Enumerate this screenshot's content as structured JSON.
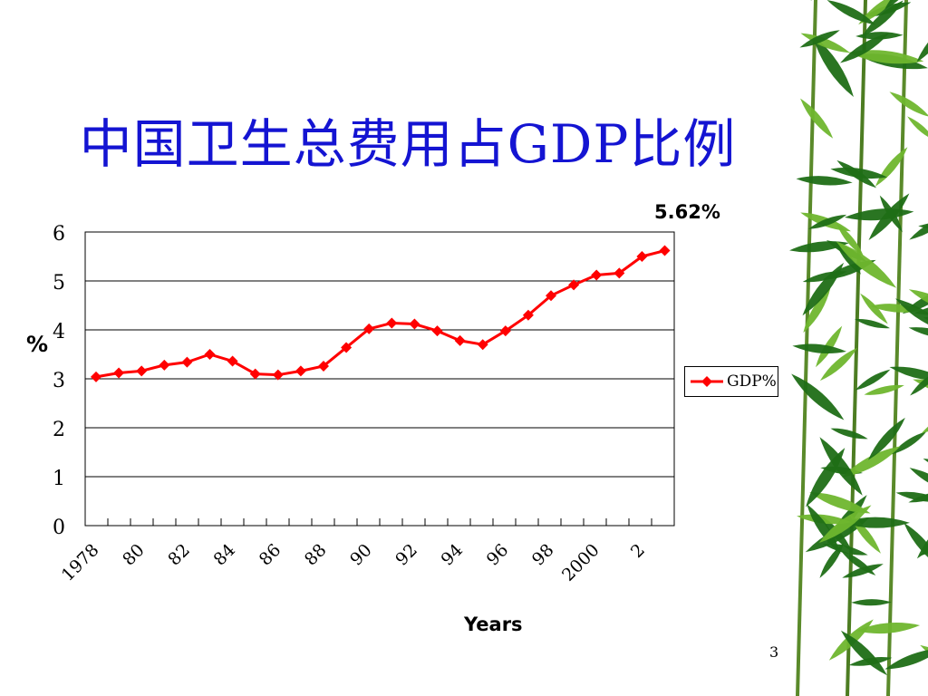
{
  "slide": {
    "title": "中国卫生总费用占GDP比例",
    "page_number": "3"
  },
  "chart_data": {
    "type": "line",
    "title": "中国卫生总费用占GDP比例",
    "xlabel": "Years",
    "ylabel": "%",
    "ylim": [
      0,
      6
    ],
    "yticks": [
      "0",
      "1",
      "2",
      "3",
      "4",
      "5",
      "6"
    ],
    "grid": true,
    "legend_position": "right",
    "x_tick_labels": [
      "1978",
      "80",
      "82",
      "84",
      "86",
      "88",
      "90",
      "92",
      "94",
      "96",
      "98",
      "2000",
      "2"
    ],
    "x": [
      1978,
      1979,
      1980,
      1981,
      1982,
      1983,
      1984,
      1985,
      1986,
      1987,
      1988,
      1989,
      1990,
      1991,
      1992,
      1993,
      1994,
      1995,
      1996,
      1997,
      1998,
      1999,
      2000,
      2001,
      2002,
      2003
    ],
    "series": [
      {
        "name": "GDP%",
        "color": "#ff0000",
        "marker": "diamond",
        "values": [
          3.04,
          3.12,
          3.16,
          3.28,
          3.34,
          3.5,
          3.36,
          3.1,
          3.08,
          3.16,
          3.26,
          3.64,
          4.02,
          4.14,
          4.12,
          3.98,
          3.78,
          3.7,
          3.98,
          4.3,
          4.7,
          4.92,
          5.12,
          5.16,
          5.5,
          5.62
        ]
      }
    ],
    "annotations": [
      {
        "text": "5.62%",
        "target": "last-point"
      }
    ]
  },
  "colors": {
    "title": "#1414d2",
    "line": "#ff0000",
    "grid": "#000000",
    "bamboo_dark": "#1f6e16",
    "bamboo_light": "#6fb62e"
  }
}
